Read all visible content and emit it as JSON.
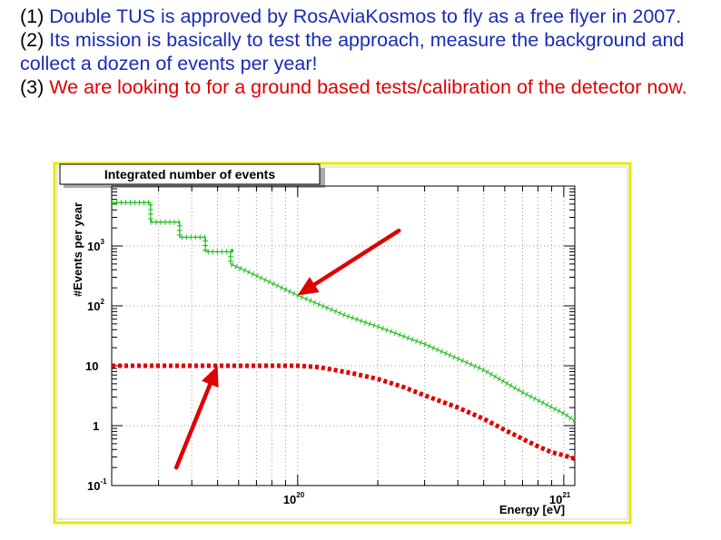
{
  "bullets": [
    {
      "num": "(1)",
      "text": "Double TUS is approved by RosAviaKosmos to fly as a free flyer in 2007."
    },
    {
      "num": "(2)",
      "text": "Its mission is basically to test the approach, measure the background and collect a dozen of events per year!"
    },
    {
      "num": "(3)",
      "text": "We are looking to for a ground based tests/calibration of the detector now."
    }
  ],
  "colors": {
    "text_blue": "#1a2bb8",
    "text_red": "#e00000",
    "series_green": "#20c020",
    "series_red": "#e00000",
    "arrow": "#e00000",
    "frame": "#e8e800"
  },
  "chart_data": {
    "type": "line",
    "title": "Integrated number of events",
    "xlabel": "Energy [eV]",
    "ylabel": "#Events per year",
    "x_scale": "log",
    "y_scale": "log",
    "xlim": [
      2e+19,
      1.1e+21
    ],
    "ylim": [
      0.1,
      10000
    ],
    "x_tick_labels": [
      {
        "base": "10",
        "exp": "20",
        "value": 1e+20
      },
      {
        "base": "10",
        "exp": "21",
        "value": 1e+21
      }
    ],
    "y_tick_labels": [
      {
        "base": "10",
        "exp": "-1",
        "value": 0.1
      },
      {
        "base": "1",
        "exp": "",
        "value": 1
      },
      {
        "base": "10",
        "exp": "",
        "value": 10
      },
      {
        "base": "10",
        "exp": "2",
        "value": 100
      },
      {
        "base": "10",
        "exp": "3",
        "value": 1000
      }
    ],
    "grid": true,
    "series": [
      {
        "color": "#20c020",
        "style": "step",
        "points": [
          [
            2e+19,
            5300
          ],
          [
            2.8e+19,
            5300
          ],
          [
            2.8e+19,
            2500
          ],
          [
            3.6e+19,
            2500
          ],
          [
            3.6e+19,
            1400
          ],
          [
            4.5e+19,
            1400
          ],
          [
            4.5e+19,
            800
          ],
          [
            5.6e+19,
            800
          ],
          [
            5.6e+19,
            500
          ],
          [
            7e+19,
            320
          ],
          [
            1e+20,
            150
          ],
          [
            1.5e+20,
            70
          ],
          [
            2e+20,
            45
          ],
          [
            3e+20,
            23
          ],
          [
            5e+20,
            8.5
          ],
          [
            7e+20,
            3.6
          ],
          [
            1e+21,
            1.6
          ],
          [
            1.1e+21,
            1.2
          ]
        ]
      },
      {
        "color": "#e00000",
        "style": "dashed-thick",
        "points": [
          [
            2e+19,
            10
          ],
          [
            5e+19,
            10
          ],
          [
            1e+20,
            10
          ],
          [
            1.2e+20,
            9.5
          ],
          [
            1.6e+20,
            7.5
          ],
          [
            2e+20,
            6.0
          ],
          [
            2.5e+20,
            4.4
          ],
          [
            3e+20,
            3.2
          ],
          [
            4e+20,
            2.0
          ],
          [
            5e+20,
            1.3
          ],
          [
            6e+20,
            0.85
          ],
          [
            7e+20,
            0.6
          ],
          [
            8e+20,
            0.45
          ],
          [
            9e+20,
            0.36
          ],
          [
            1e+21,
            0.32
          ],
          [
            1.1e+21,
            0.28
          ]
        ]
      }
    ],
    "annotations": [
      {
        "type": "arrow",
        "color": "#e00000",
        "from": [
          2.4e+20,
          1800
        ],
        "to": [
          1e+20,
          150
        ]
      },
      {
        "type": "arrow",
        "color": "#e00000",
        "from": [
          3.5e+19,
          0.2
        ],
        "to": [
          5e+19,
          10
        ]
      }
    ]
  }
}
